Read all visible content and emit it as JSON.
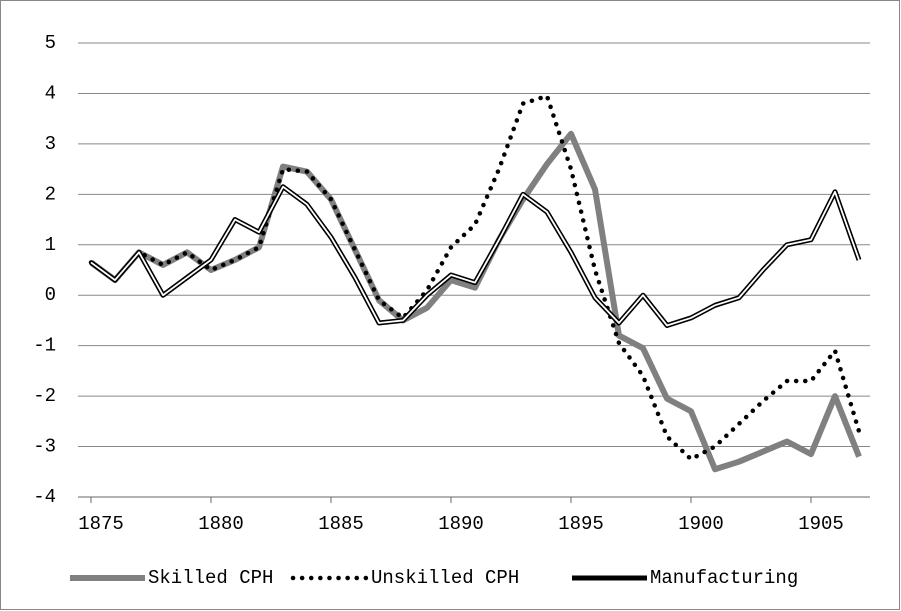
{
  "chart_data": {
    "type": "line",
    "x": [
      1875,
      1876,
      1877,
      1878,
      1879,
      1880,
      1881,
      1882,
      1883,
      1884,
      1885,
      1886,
      1887,
      1888,
      1889,
      1890,
      1891,
      1892,
      1893,
      1894,
      1895,
      1896,
      1897,
      1898,
      1899,
      1900,
      1901,
      1902,
      1903,
      1904,
      1905,
      1906,
      1907
    ],
    "series": [
      {
        "name": "Skilled CPH",
        "color": "#808080",
        "line_style": "solid",
        "values": [
          0.65,
          0.3,
          0.85,
          0.6,
          0.85,
          0.5,
          0.7,
          0.95,
          2.55,
          2.45,
          1.9,
          0.9,
          -0.1,
          -0.5,
          -0.25,
          0.3,
          0.15,
          1.1,
          1.9,
          2.6,
          3.2,
          2.1,
          -0.8,
          -1.05,
          -2.05,
          -2.3,
          -3.45,
          -3.3,
          -3.1,
          -2.9,
          -3.15,
          -2.0,
          -3.2
        ]
      },
      {
        "name": "Unskilled CPH",
        "color": "#000000",
        "line_style": "dotted",
        "values": [
          0.65,
          0.3,
          0.85,
          0.6,
          0.85,
          0.5,
          0.7,
          0.95,
          2.5,
          2.45,
          1.9,
          0.9,
          -0.1,
          -0.45,
          0.1,
          0.95,
          1.4,
          2.5,
          3.8,
          3.95,
          2.5,
          0.5,
          -0.95,
          -1.6,
          -2.8,
          -3.25,
          -3.0,
          -2.55,
          -2.1,
          -1.7,
          -1.7,
          -1.1,
          -2.7
        ]
      },
      {
        "name": "Manufacturing",
        "color": "#000000",
        "line_style": "double",
        "values": [
          0.65,
          0.3,
          0.85,
          0.0,
          0.35,
          0.7,
          1.5,
          1.25,
          2.15,
          1.8,
          1.15,
          0.35,
          -0.55,
          -0.5,
          0.0,
          0.4,
          0.25,
          1.1,
          2.0,
          1.65,
          0.85,
          -0.05,
          -0.55,
          0.0,
          -0.6,
          -0.45,
          -0.2,
          -0.05,
          0.5,
          1.0,
          1.1,
          2.05,
          0.7
        ]
      }
    ],
    "xlim": [
      1875,
      1907
    ],
    "xticks": [
      1875,
      1880,
      1885,
      1890,
      1895,
      1900,
      1905
    ],
    "ylim": [
      -4,
      5
    ],
    "yticks": [
      -4,
      -3,
      -2,
      -1,
      0,
      1,
      2,
      3,
      4,
      5
    ],
    "grid": true,
    "legend": "bottom"
  }
}
